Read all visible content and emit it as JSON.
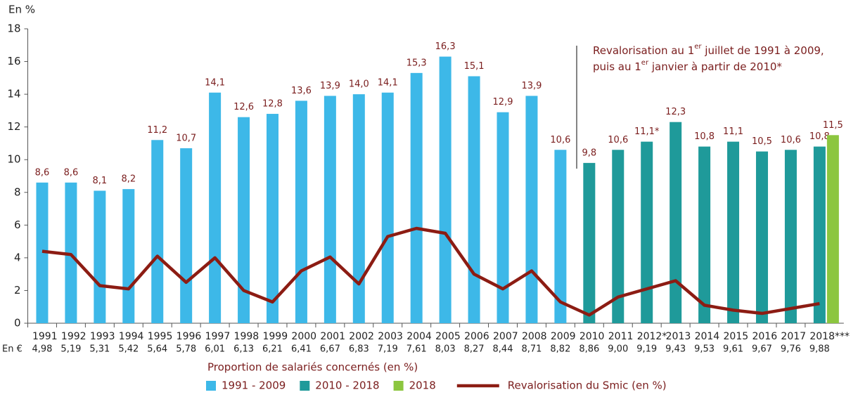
{
  "chart_data": {
    "type": "bar",
    "y_label": "En %",
    "x_sublabel_title": "En €",
    "categories": [
      "1991",
      "1992",
      "1993",
      "1994",
      "1995",
      "1996",
      "1997",
      "1998",
      "1999",
      "2000",
      "2001",
      "2002",
      "2003",
      "2004",
      "2005",
      "2006",
      "2007",
      "2008",
      "2009",
      "2010",
      "2011",
      "2012*",
      "2013",
      "2014",
      "2015",
      "2016",
      "2017",
      "2018***"
    ],
    "sublabels": [
      "4,98",
      "5,19",
      "5,31",
      "5,42",
      "5,64",
      "5,78",
      "6,01",
      "6,13",
      "6,21",
      "6,41",
      "6,67",
      "6,83",
      "7,19",
      "7,61",
      "8,03",
      "8,27",
      "8,44",
      "8,71",
      "8,82",
      "8,86",
      "9,00",
      "9,19",
      "9,43",
      "9,53",
      "9,61",
      "9,67",
      "9,76",
      "9,88"
    ],
    "ylim": [
      0,
      18
    ],
    "yticks": [
      0,
      2,
      4,
      6,
      8,
      10,
      12,
      14,
      16,
      18
    ],
    "grid": false,
    "legend_title": "Proportion de salariés concernés (en %)",
    "series": [
      {
        "name": "1991 - 2009",
        "color": "#3db8e8",
        "values": [
          8.6,
          8.6,
          8.1,
          8.2,
          11.2,
          10.7,
          14.1,
          12.6,
          12.8,
          13.6,
          13.9,
          14.0,
          14.1,
          15.3,
          16.3,
          15.1,
          12.9,
          13.9,
          10.6,
          null,
          null,
          null,
          null,
          null,
          null,
          null,
          null,
          null
        ],
        "value_labels": [
          "8,6",
          "8,6",
          "8,1",
          "8,2",
          "11,2",
          "10,7",
          "14,1",
          "12,6",
          "12,8",
          "13,6",
          "13,9",
          "14,0",
          "14,1",
          "15,3",
          "16,3",
          "15,1",
          "12,9",
          "13,9",
          "10,6",
          null,
          null,
          null,
          null,
          null,
          null,
          null,
          null,
          null
        ]
      },
      {
        "name": "2010 - 2018",
        "color": "#1f9a9a",
        "values": [
          null,
          null,
          null,
          null,
          null,
          null,
          null,
          null,
          null,
          null,
          null,
          null,
          null,
          null,
          null,
          null,
          null,
          null,
          null,
          9.8,
          10.6,
          11.1,
          12.3,
          10.8,
          11.1,
          10.5,
          10.6,
          10.8
        ],
        "value_labels": [
          null,
          null,
          null,
          null,
          null,
          null,
          null,
          null,
          null,
          null,
          null,
          null,
          null,
          null,
          null,
          null,
          null,
          null,
          null,
          "9,8",
          "10,6",
          "11,1*",
          "12,3",
          "10,8",
          "11,1",
          "10,5",
          "10,6",
          "10,8"
        ]
      },
      {
        "name": "2018",
        "color": "#8cc63f",
        "values": [
          null,
          null,
          null,
          null,
          null,
          null,
          null,
          null,
          null,
          null,
          null,
          null,
          null,
          null,
          null,
          null,
          null,
          null,
          null,
          null,
          null,
          null,
          null,
          null,
          null,
          null,
          null,
          11.5
        ],
        "value_labels": [
          null,
          null,
          null,
          null,
          null,
          null,
          null,
          null,
          null,
          null,
          null,
          null,
          null,
          null,
          null,
          null,
          null,
          null,
          null,
          null,
          null,
          null,
          null,
          null,
          null,
          null,
          null,
          "11,5"
        ]
      },
      {
        "name": "Revalorisation du Smic (en %)",
        "type": "line",
        "color": "#8c1c13",
        "values": [
          4.4,
          4.2,
          2.3,
          2.1,
          4.1,
          2.5,
          4.0,
          2.0,
          1.3,
          3.2,
          4.05,
          2.4,
          5.3,
          5.8,
          5.5,
          3.0,
          2.1,
          3.2,
          1.3,
          0.5,
          1.6,
          2.1,
          2.6,
          1.1,
          0.8,
          0.6,
          0.9,
          1.2
        ]
      }
    ],
    "annotation": {
      "line1": [
        "Revalorisation au 1",
        "er",
        " juillet de 1991 à 2009,"
      ],
      "line2": [
        "puis au 1",
        "er",
        " janvier à partir de 2010*"
      ]
    }
  }
}
